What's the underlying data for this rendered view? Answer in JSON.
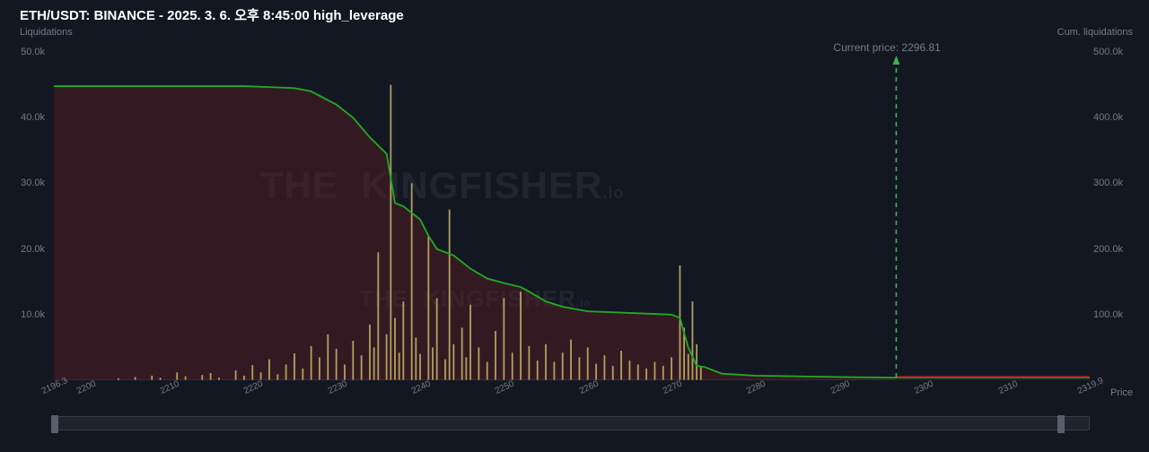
{
  "header": {
    "title": "ETH/USDT: BINANCE - 2025. 3. 6. 오후 8:45:00 high_leverage",
    "left_sub": "Liquidations",
    "right_sub": "Cum. liquidations",
    "current_price_label": "Current price: 2296.81",
    "price_axis_label": "Price"
  },
  "watermark": {
    "text_main": "THE",
    "text_brand": "KINGFISHER",
    "text_suffix": ".io"
  },
  "chart": {
    "type": "combo-bar-line",
    "background_color": "#131722",
    "fill_left_color": "rgba(90,30,35,0.45)",
    "cum_line_color": "#22ab22",
    "bar_color": "#c9b96a",
    "right_baseline_color": "#b02a2a",
    "current_price_line_color": "#3ab54a",
    "xlim": [
      2196.3,
      2319.9
    ],
    "ylim_left": [
      0,
      50000
    ],
    "ylim_right": [
      0,
      500000
    ],
    "current_price_x": 2296.81,
    "x_ticks": [
      "2196.3",
      "2200",
      "2210",
      "2220",
      "2230",
      "2240",
      "2250",
      "2260",
      "2270",
      "2280",
      "2290",
      "2300",
      "2310",
      "2319.9"
    ],
    "y_ticks_left": [
      "10.0k",
      "20.0k",
      "30.0k",
      "40.0k",
      "50.0k"
    ],
    "y_ticks_left_vals": [
      10000,
      20000,
      30000,
      40000,
      50000
    ],
    "y_ticks_right": [
      "100.0k",
      "200.0k",
      "300.0k",
      "400.0k",
      "500.0k"
    ],
    "y_ticks_right_vals": [
      100000,
      200000,
      300000,
      400000,
      500000
    ],
    "cum_line_points": [
      [
        2196.3,
        448000
      ],
      [
        2219,
        448000
      ],
      [
        2223,
        446000
      ],
      [
        2225,
        445000
      ],
      [
        2227,
        440000
      ],
      [
        2230,
        420000
      ],
      [
        2232,
        400000
      ],
      [
        2234,
        370000
      ],
      [
        2236,
        345000
      ],
      [
        2237,
        270000
      ],
      [
        2238,
        265000
      ],
      [
        2240,
        245000
      ],
      [
        2241,
        220000
      ],
      [
        2242,
        200000
      ],
      [
        2244,
        190000
      ],
      [
        2246,
        170000
      ],
      [
        2248,
        155000
      ],
      [
        2250,
        148000
      ],
      [
        2252,
        142000
      ],
      [
        2253,
        135000
      ],
      [
        2255,
        120000
      ],
      [
        2257,
        112000
      ],
      [
        2260,
        105000
      ],
      [
        2266,
        102000
      ],
      [
        2270,
        100000
      ],
      [
        2271,
        95000
      ],
      [
        2272,
        50000
      ],
      [
        2273,
        22000
      ],
      [
        2274,
        20000
      ],
      [
        2276,
        10000
      ],
      [
        2280,
        7000
      ],
      [
        2290,
        5000
      ],
      [
        2296.81,
        4000
      ],
      [
        2319.9,
        4000
      ]
    ],
    "bars": [
      [
        2204,
        300
      ],
      [
        2206,
        500
      ],
      [
        2208,
        700
      ],
      [
        2209,
        400
      ],
      [
        2211,
        1200
      ],
      [
        2212,
        600
      ],
      [
        2214,
        800
      ],
      [
        2215,
        1100
      ],
      [
        2216,
        400
      ],
      [
        2218,
        1500
      ],
      [
        2219,
        700
      ],
      [
        2220,
        2300
      ],
      [
        2221,
        1200
      ],
      [
        2222,
        3200
      ],
      [
        2223,
        900
      ],
      [
        2224,
        2400
      ],
      [
        2225,
        4100
      ],
      [
        2226,
        1800
      ],
      [
        2227,
        5200
      ],
      [
        2228,
        3500
      ],
      [
        2229,
        7000
      ],
      [
        2230,
        4800
      ],
      [
        2231,
        2400
      ],
      [
        2232,
        6000
      ],
      [
        2233,
        3800
      ],
      [
        2234,
        8500
      ],
      [
        2234.5,
        5000
      ],
      [
        2235,
        19500
      ],
      [
        2236,
        7000
      ],
      [
        2236.5,
        45000
      ],
      [
        2237,
        9500
      ],
      [
        2237.5,
        4200
      ],
      [
        2238,
        12000
      ],
      [
        2239,
        30000
      ],
      [
        2239.5,
        6500
      ],
      [
        2240,
        4000
      ],
      [
        2241,
        22000
      ],
      [
        2241.5,
        5000
      ],
      [
        2242,
        12500
      ],
      [
        2243,
        3200
      ],
      [
        2243.5,
        26000
      ],
      [
        2244,
        5500
      ],
      [
        2245,
        8000
      ],
      [
        2245.5,
        3500
      ],
      [
        2246,
        11500
      ],
      [
        2247,
        5000
      ],
      [
        2248,
        2800
      ],
      [
        2249,
        7500
      ],
      [
        2250,
        12500
      ],
      [
        2251,
        4200
      ],
      [
        2252,
        13500
      ],
      [
        2253,
        5200
      ],
      [
        2254,
        3000
      ],
      [
        2255,
        5500
      ],
      [
        2256,
        2800
      ],
      [
        2257,
        4200
      ],
      [
        2258,
        6200
      ],
      [
        2259,
        3500
      ],
      [
        2260,
        5000
      ],
      [
        2261,
        2500
      ],
      [
        2262,
        3800
      ],
      [
        2263,
        2200
      ],
      [
        2264,
        4500
      ],
      [
        2265,
        3000
      ],
      [
        2266,
        2400
      ],
      [
        2267,
        1800
      ],
      [
        2268,
        2800
      ],
      [
        2269,
        2200
      ],
      [
        2270,
        3500
      ],
      [
        2271,
        17500
      ],
      [
        2271.5,
        8000
      ],
      [
        2272,
        4000
      ],
      [
        2272.5,
        12000
      ],
      [
        2273,
        5500
      ],
      [
        2273.5,
        2000
      ]
    ],
    "right_red_segment": [
      [
        2296.81,
        500
      ],
      [
        2319.9,
        500
      ]
    ],
    "range_slider": {
      "start_frac": 0.0,
      "end_frac": 1.0,
      "handle_right_frac": 0.97
    }
  },
  "colors": {
    "text_muted": "#787b86",
    "text_title": "#ffffff"
  }
}
